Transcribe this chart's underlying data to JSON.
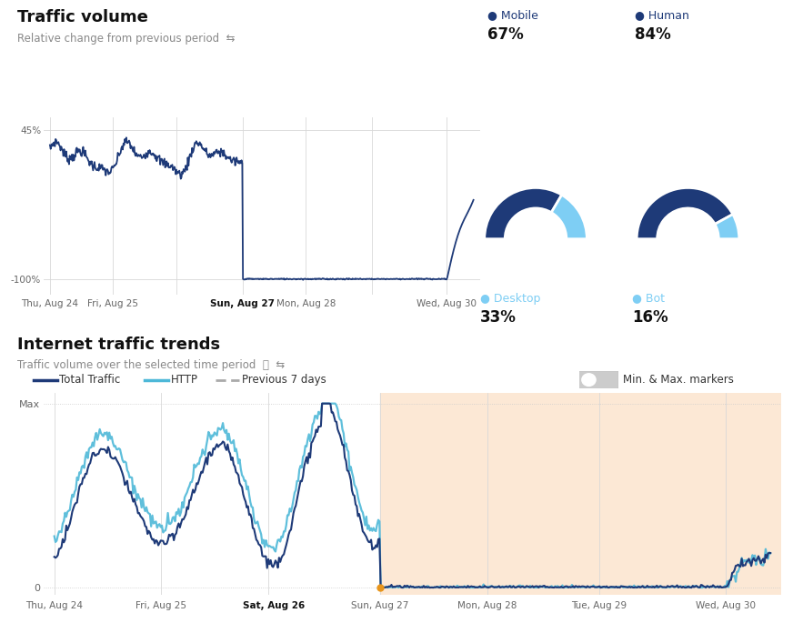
{
  "top_title": "Traffic volume",
  "top_subtitle": "Relative change from previous period",
  "bottom_title": "Internet traffic trends",
  "bottom_subtitle": "Traffic volume over the selected time period",
  "chart1_line_color": "#1e3a78",
  "chart1_ytick_labels": [
    "45%",
    "-100%"
  ],
  "chart1_x_labels": [
    "Thu, Aug 24",
    "Fri, Aug 25",
    "Sun, Aug 27",
    "Mon, Aug 28",
    "Wed, Aug 30"
  ],
  "chart1_bold_label": "Sun, Aug 27",
  "donut1_color_main": "#1e3a78",
  "donut1_color_sec": "#7ecef4",
  "donut1_pct_main": 67,
  "donut1_label_main": "Mobile",
  "donut1_label_sec": "Desktop",
  "donut1_pct1_str": "67%",
  "donut1_pct2_str": "33%",
  "donut2_color_main": "#1e3a78",
  "donut2_color_sec": "#7ecef4",
  "donut2_pct_main": 84,
  "donut2_label_main": "Human",
  "donut2_label_sec": "Bot",
  "donut2_pct1_str": "84%",
  "donut2_pct2_str": "16%",
  "chart2_total_color": "#1e3a78",
  "chart2_http_color": "#4db8d8",
  "chart2_prev_color": "#bbbbbb",
  "chart2_shade_color": "#fce8d5",
  "chart2_x_labels": [
    "Thu, Aug 24",
    "Fri, Aug 25",
    "Sat, Aug 26",
    "Sun, Aug 27",
    "Mon, Aug 28",
    "Tue, Aug 29",
    "Wed, Aug 30"
  ],
  "chart2_bold_label": "Sat, Aug 26",
  "legend_total": "Total Traffic",
  "legend_http": "HTTP",
  "legend_prev": "Previous 7 days",
  "legend_minmax": "Min. & Max. markers",
  "dot_color_main": "#1e3a78",
  "dot_color_sec": "#7ecef4"
}
